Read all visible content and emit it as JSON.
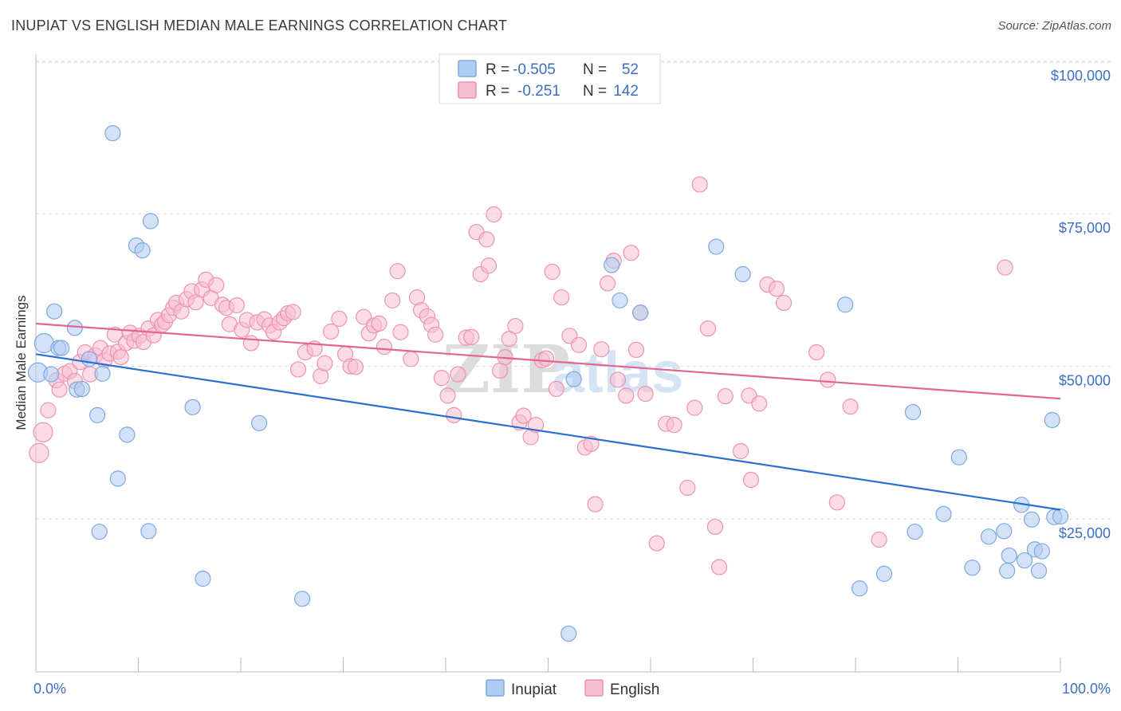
{
  "header": {
    "title": "INUPIAT VS ENGLISH MEDIAN MALE EARNINGS CORRELATION CHART",
    "source": "Source: ZipAtlas.com"
  },
  "legend_box": {
    "rows": [
      {
        "r_label": "R =",
        "r_value": "-0.505",
        "n_label": "N =",
        "n_value": "52"
      },
      {
        "r_label": "R =",
        "r_value": "-0.251",
        "n_label": "N =",
        "n_value": "142"
      }
    ]
  },
  "watermark": {
    "zip": "ZIP",
    "atlas": "atlas"
  },
  "colors": {
    "inupiat_fill": "#aecbf2",
    "inupiat_stroke": "#7ea8df",
    "inupiat_line": "#2a6fd6",
    "english_fill": "#f7bdd0",
    "english_stroke": "#ec93b2",
    "english_line": "#e06690",
    "grid": "#dddddd",
    "axis_text": "#3c6fc4"
  },
  "chart_data": {
    "type": "scatter",
    "ylabel": "Median Male Earnings",
    "xlim": [
      0,
      100
    ],
    "ylim": [
      0,
      105000
    ],
    "y_ticks": [
      {
        "value": 25000,
        "label": "$25,000"
      },
      {
        "value": 50000,
        "label": "$50,000"
      },
      {
        "value": 75000,
        "label": "$75,000"
      },
      {
        "value": 100000,
        "label": "$100,000"
      }
    ],
    "x_tick_labels": {
      "left": "0.0%",
      "right": "100.0%"
    },
    "legend": [
      "Inupiat",
      "English"
    ],
    "series": [
      {
        "name": "Inupiat",
        "trend": {
          "x": [
            0,
            100
          ],
          "y": [
            52000,
            26500
          ]
        },
        "points": [
          [
            0.2,
            49000
          ],
          [
            0.8,
            53800
          ],
          [
            1.5,
            48700
          ],
          [
            1.8,
            59000
          ],
          [
            2.2,
            53000
          ],
          [
            2.5,
            53000
          ],
          [
            3.8,
            56300
          ],
          [
            4.0,
            46200
          ],
          [
            4.5,
            46300
          ],
          [
            5.2,
            51200
          ],
          [
            6.0,
            42000
          ],
          [
            6.2,
            22900
          ],
          [
            6.5,
            48800
          ],
          [
            7.5,
            88200
          ],
          [
            8.0,
            31600
          ],
          [
            8.9,
            38800
          ],
          [
            9.8,
            69800
          ],
          [
            10.4,
            69000
          ],
          [
            11.0,
            23000
          ],
          [
            11.2,
            73800
          ],
          [
            15.3,
            43300
          ],
          [
            16.3,
            15200
          ],
          [
            21.8,
            40700
          ],
          [
            26.0,
            11900
          ],
          [
            52.0,
            6200
          ],
          [
            52.5,
            47900
          ],
          [
            56.2,
            66600
          ],
          [
            57.0,
            60800
          ],
          [
            59.0,
            58800
          ],
          [
            66.4,
            69600
          ],
          [
            69.0,
            65100
          ],
          [
            79.0,
            60100
          ],
          [
            80.4,
            13600
          ],
          [
            82.8,
            16000
          ],
          [
            85.6,
            42500
          ],
          [
            85.8,
            22900
          ],
          [
            88.6,
            25800
          ],
          [
            90.1,
            35100
          ],
          [
            91.4,
            17000
          ],
          [
            93.0,
            22100
          ],
          [
            94.5,
            23000
          ],
          [
            94.8,
            16500
          ],
          [
            95.0,
            19000
          ],
          [
            96.2,
            27300
          ],
          [
            96.5,
            18200
          ],
          [
            97.2,
            24900
          ],
          [
            97.5,
            20000
          ],
          [
            97.9,
            16500
          ],
          [
            98.2,
            19700
          ],
          [
            99.2,
            41200
          ],
          [
            99.4,
            25300
          ],
          [
            100.0,
            25400
          ]
        ]
      },
      {
        "name": "English",
        "trend": {
          "x": [
            0,
            100
          ],
          "y": [
            57000,
            44700
          ]
        },
        "points": [
          [
            0.3,
            35800
          ],
          [
            0.7,
            39200
          ],
          [
            1.2,
            42800
          ],
          [
            2.0,
            47700
          ],
          [
            2.3,
            46200
          ],
          [
            2.8,
            48800
          ],
          [
            3.3,
            49200
          ],
          [
            3.8,
            47600
          ],
          [
            4.3,
            50700
          ],
          [
            4.8,
            52300
          ],
          [
            5.3,
            48700
          ],
          [
            5.8,
            51800
          ],
          [
            6.3,
            53000
          ],
          [
            6.7,
            51000
          ],
          [
            7.2,
            52100
          ],
          [
            7.7,
            55200
          ],
          [
            8.0,
            52400
          ],
          [
            8.3,
            51500
          ],
          [
            8.8,
            53800
          ],
          [
            9.2,
            55500
          ],
          [
            9.6,
            54200
          ],
          [
            10.1,
            55000
          ],
          [
            10.5,
            54000
          ],
          [
            11.0,
            56200
          ],
          [
            11.5,
            55100
          ],
          [
            11.9,
            57600
          ],
          [
            12.3,
            56800
          ],
          [
            12.6,
            57300
          ],
          [
            13.0,
            58400
          ],
          [
            13.4,
            59600
          ],
          [
            13.7,
            60400
          ],
          [
            14.2,
            59000
          ],
          [
            14.7,
            61000
          ],
          [
            15.2,
            62300
          ],
          [
            15.6,
            60500
          ],
          [
            16.2,
            62600
          ],
          [
            16.6,
            64200
          ],
          [
            17.1,
            61200
          ],
          [
            17.6,
            63300
          ],
          [
            18.2,
            60100
          ],
          [
            18.6,
            59600
          ],
          [
            18.9,
            56900
          ],
          [
            19.6,
            60000
          ],
          [
            20.1,
            56000
          ],
          [
            20.6,
            57600
          ],
          [
            21.0,
            53800
          ],
          [
            21.6,
            57200
          ],
          [
            22.3,
            57700
          ],
          [
            22.8,
            56700
          ],
          [
            23.2,
            55600
          ],
          [
            23.8,
            57200
          ],
          [
            24.2,
            57900
          ],
          [
            24.6,
            58700
          ],
          [
            25.1,
            58900
          ],
          [
            25.6,
            49500
          ],
          [
            26.3,
            52300
          ],
          [
            27.2,
            52900
          ],
          [
            27.8,
            48400
          ],
          [
            28.2,
            50500
          ],
          [
            28.8,
            55700
          ],
          [
            29.6,
            57800
          ],
          [
            30.2,
            52000
          ],
          [
            30.7,
            50000
          ],
          [
            31.2,
            49900
          ],
          [
            32.0,
            58100
          ],
          [
            32.5,
            55400
          ],
          [
            33.0,
            56700
          ],
          [
            33.5,
            57000
          ],
          [
            34.0,
            53200
          ],
          [
            34.8,
            60800
          ],
          [
            35.3,
            65600
          ],
          [
            35.6,
            55600
          ],
          [
            36.6,
            51200
          ],
          [
            37.2,
            61300
          ],
          [
            37.6,
            59200
          ],
          [
            38.2,
            58200
          ],
          [
            38.6,
            56800
          ],
          [
            39.0,
            55200
          ],
          [
            39.6,
            48100
          ],
          [
            40.2,
            45200
          ],
          [
            40.8,
            42000
          ],
          [
            41.2,
            48700
          ],
          [
            42.0,
            54700
          ],
          [
            42.5,
            54800
          ],
          [
            43.0,
            72000
          ],
          [
            43.4,
            65100
          ],
          [
            44.0,
            70800
          ],
          [
            44.2,
            66500
          ],
          [
            44.7,
            74900
          ],
          [
            45.3,
            49300
          ],
          [
            45.8,
            51500
          ],
          [
            46.2,
            54500
          ],
          [
            46.8,
            56600
          ],
          [
            47.2,
            40800
          ],
          [
            47.6,
            41900
          ],
          [
            48.3,
            38400
          ],
          [
            48.8,
            40400
          ],
          [
            49.4,
            51000
          ],
          [
            49.8,
            51300
          ],
          [
            50.4,
            65500
          ],
          [
            50.8,
            46300
          ],
          [
            51.3,
            61300
          ],
          [
            52.1,
            55000
          ],
          [
            53.0,
            53500
          ],
          [
            53.6,
            36700
          ],
          [
            54.2,
            37300
          ],
          [
            54.6,
            27400
          ],
          [
            55.2,
            52800
          ],
          [
            55.8,
            63600
          ],
          [
            56.4,
            67300
          ],
          [
            56.8,
            47800
          ],
          [
            57.6,
            45200
          ],
          [
            58.1,
            68600
          ],
          [
            58.6,
            52700
          ],
          [
            59.0,
            58800
          ],
          [
            59.5,
            45500
          ],
          [
            60.6,
            21000
          ],
          [
            61.5,
            40600
          ],
          [
            62.3,
            40400
          ],
          [
            63.6,
            30100
          ],
          [
            64.3,
            43200
          ],
          [
            64.8,
            79800
          ],
          [
            65.6,
            56200
          ],
          [
            66.3,
            23700
          ],
          [
            66.7,
            17100
          ],
          [
            67.3,
            45100
          ],
          [
            68.8,
            36100
          ],
          [
            69.6,
            45200
          ],
          [
            69.8,
            31400
          ],
          [
            70.6,
            43900
          ],
          [
            71.4,
            63400
          ],
          [
            72.3,
            62700
          ],
          [
            73.0,
            60400
          ],
          [
            76.2,
            52300
          ],
          [
            77.3,
            47800
          ],
          [
            78.2,
            27700
          ],
          [
            79.5,
            43400
          ],
          [
            82.3,
            21600
          ],
          [
            94.6,
            66200
          ]
        ]
      }
    ]
  },
  "bottom_legend": {
    "items": [
      {
        "label": "Inupiat"
      },
      {
        "label": "English"
      }
    ]
  }
}
